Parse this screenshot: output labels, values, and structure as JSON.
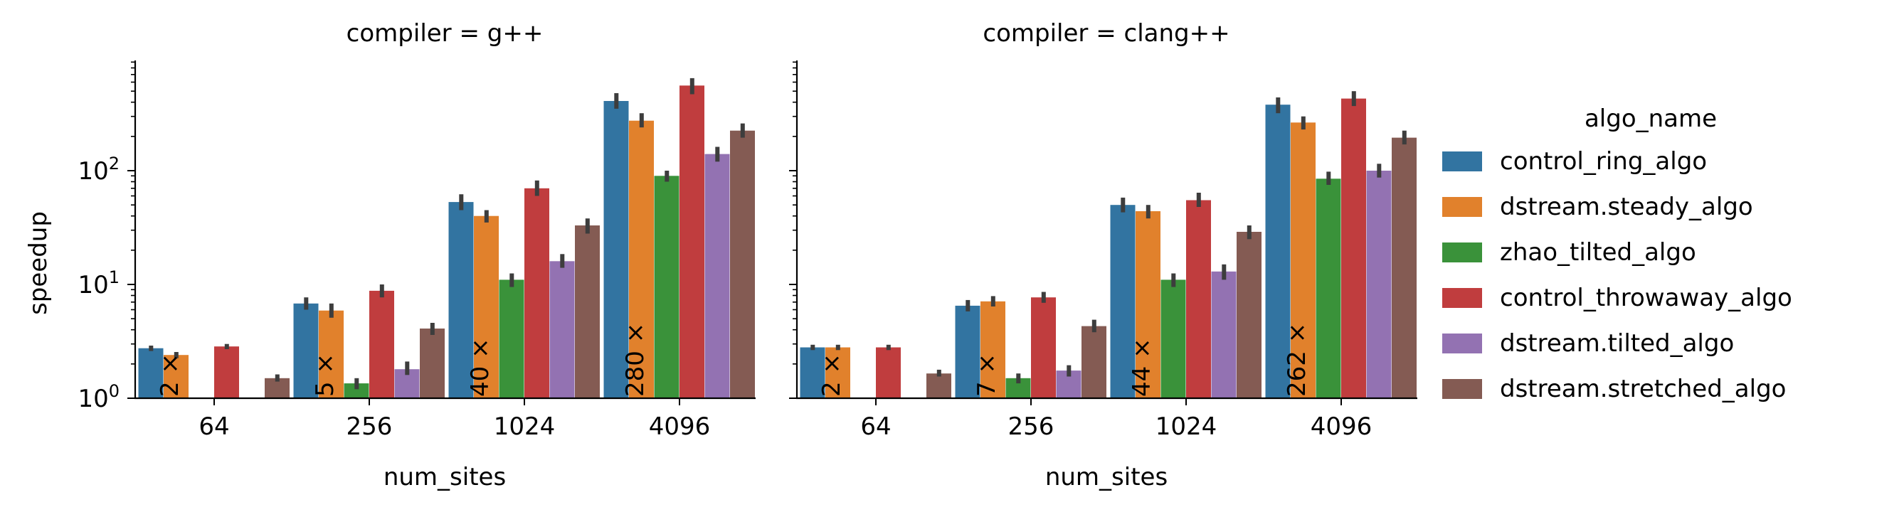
{
  "chart_data": [
    {
      "type": "bar",
      "title": "compiler = g++",
      "xlabel": "num_sites",
      "ylabel": "speedup",
      "yscale": "log",
      "ylim": [
        1,
        1000
      ],
      "yticks": [
        {
          "value": 1,
          "base": "10",
          "exp": "0"
        },
        {
          "value": 10,
          "base": "10",
          "exp": "1"
        },
        {
          "value": 100,
          "base": "10",
          "exp": "2"
        }
      ],
      "categories": [
        "64",
        "256",
        "1024",
        "4096"
      ],
      "series": [
        {
          "name": "control_ring_algo",
          "values": [
            2.75,
            6.8,
            53,
            410
          ],
          "err_low": [
            2.6,
            6.0,
            45,
            350
          ],
          "err_high": [
            2.9,
            7.7,
            62,
            480
          ]
        },
        {
          "name": "dstream.steady_algo",
          "values": [
            2.4,
            5.9,
            40,
            275
          ],
          "err_low": [
            2.25,
            5.1,
            35,
            240
          ],
          "err_high": [
            2.55,
            6.8,
            45,
            320
          ]
        },
        {
          "name": "zhao_tilted_algo",
          "values": [
            null,
            1.35,
            11,
            90
          ],
          "err_low": [
            null,
            1.2,
            9.5,
            80
          ],
          "err_high": [
            null,
            1.5,
            12.5,
            100
          ]
        },
        {
          "name": "control_throwaway_algo",
          "values": [
            2.85,
            8.8,
            70,
            560
          ],
          "err_low": [
            2.7,
            7.7,
            60,
            470
          ],
          "err_high": [
            3.0,
            10.0,
            82,
            650
          ]
        },
        {
          "name": "dstream.tilted_algo",
          "values": [
            null,
            1.8,
            16,
            140
          ],
          "err_low": [
            null,
            1.6,
            14,
            120
          ],
          "err_high": [
            null,
            2.1,
            18.5,
            162
          ]
        },
        {
          "name": "dstream.stretched_algo",
          "values": [
            1.5,
            4.1,
            33,
            225
          ],
          "err_low": [
            1.4,
            3.6,
            28,
            195
          ],
          "err_high": [
            1.62,
            4.6,
            38,
            260
          ]
        }
      ],
      "annotations": [
        {
          "category": "64",
          "text": "2 ×"
        },
        {
          "category": "256",
          "text": "5 ×"
        },
        {
          "category": "1024",
          "text": "40 ×"
        },
        {
          "category": "4096",
          "text": "280 ×"
        }
      ]
    },
    {
      "type": "bar",
      "title": "compiler = clang++",
      "xlabel": "num_sites",
      "ylabel": "",
      "yscale": "log",
      "ylim": [
        1,
        1000
      ],
      "categories": [
        "64",
        "256",
        "1024",
        "4096"
      ],
      "series": [
        {
          "name": "control_ring_algo",
          "values": [
            2.8,
            6.5,
            50,
            380
          ],
          "err_low": [
            2.65,
            5.8,
            43,
            320
          ],
          "err_high": [
            2.95,
            7.3,
            58,
            440
          ]
        },
        {
          "name": "dstream.steady_algo",
          "values": [
            2.8,
            7.1,
            44,
            265
          ],
          "err_low": [
            2.65,
            6.4,
            38,
            230
          ],
          "err_high": [
            2.95,
            7.9,
            50,
            300
          ]
        },
        {
          "name": "zhao_tilted_algo",
          "values": [
            null,
            1.5,
            11,
            85
          ],
          "err_low": [
            null,
            1.35,
            9.5,
            75
          ],
          "err_high": [
            null,
            1.65,
            12.5,
            98
          ]
        },
        {
          "name": "control_throwaway_algo",
          "values": [
            2.8,
            7.7,
            55,
            430
          ],
          "err_low": [
            2.65,
            6.9,
            48,
            370
          ],
          "err_high": [
            2.95,
            8.6,
            64,
            500
          ]
        },
        {
          "name": "dstream.tilted_algo",
          "values": [
            null,
            1.75,
            13,
            100
          ],
          "err_low": [
            null,
            1.55,
            11,
            87
          ],
          "err_high": [
            null,
            1.95,
            15,
            115
          ]
        },
        {
          "name": "dstream.stretched_algo",
          "values": [
            1.65,
            4.3,
            29,
            195
          ],
          "err_low": [
            1.55,
            3.8,
            25,
            170
          ],
          "err_high": [
            1.78,
            4.9,
            33,
            225
          ]
        }
      ],
      "annotations": [
        {
          "category": "64",
          "text": "2 ×"
        },
        {
          "category": "256",
          "text": "7 ×"
        },
        {
          "category": "1024",
          "text": "44 ×"
        },
        {
          "category": "4096",
          "text": "262 ×"
        }
      ]
    }
  ],
  "legend": {
    "title": "algo_name",
    "placement": "right",
    "entries": [
      {
        "name": "control_ring_algo",
        "color": "#3274a1"
      },
      {
        "name": "dstream.steady_algo",
        "color": "#e1812c"
      },
      {
        "name": "zhao_tilted_algo",
        "color": "#3a923a"
      },
      {
        "name": "control_throwaway_algo",
        "color": "#c03d3e"
      },
      {
        "name": "dstream.tilted_algo",
        "color": "#9372b2"
      },
      {
        "name": "dstream.stretched_algo",
        "color": "#845b53"
      }
    ]
  },
  "colors": {
    "errorbar": "#3d3d3d",
    "axis": "#000000"
  }
}
